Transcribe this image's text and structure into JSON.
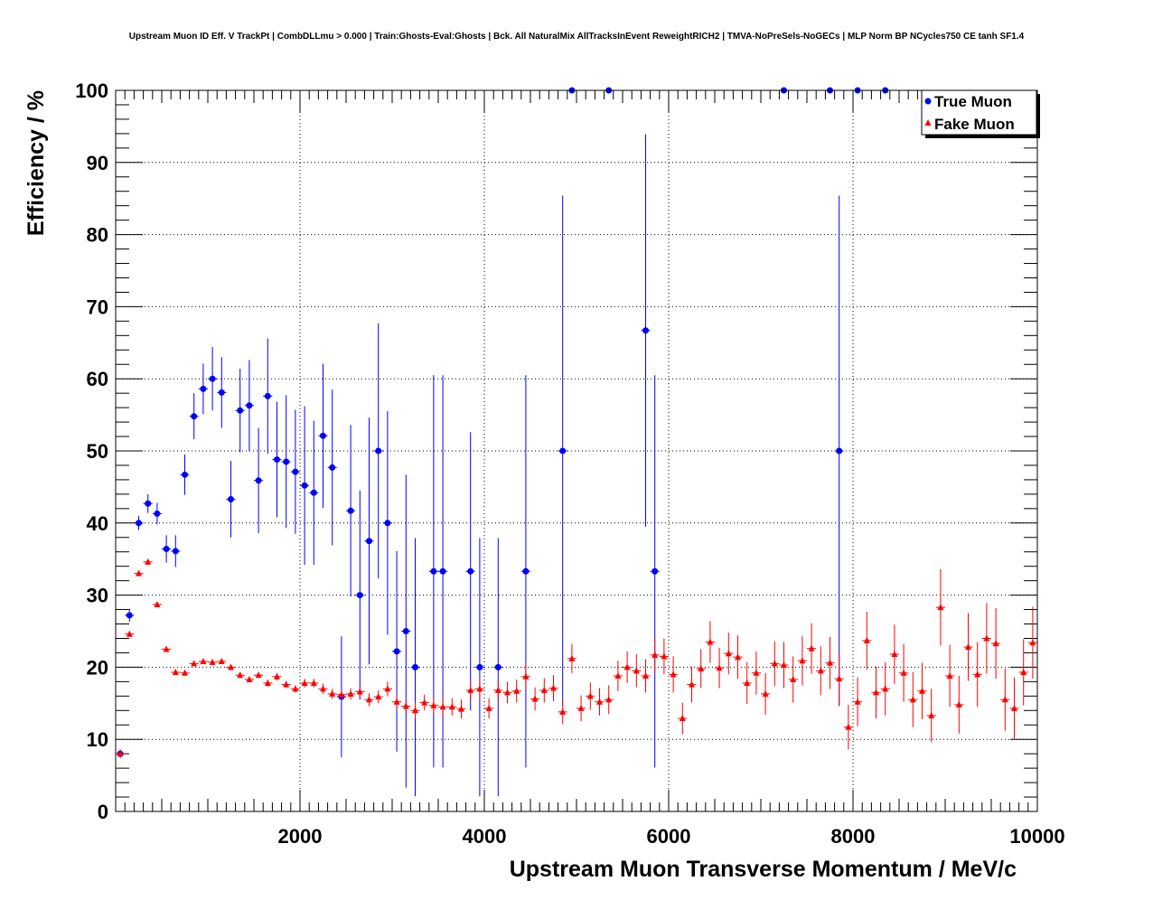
{
  "chart_data": {
    "type": "scatter",
    "title": "Upstream Muon ID Eff. V TrackPt | CombDLLmu > 0.000 | Train:Ghosts-Eval:Ghosts | Bck. All NaturalMix AllTracksInEvent ReweightRICH2 | TMVA-NoPreSels-NoGECs | MLP Norm BP NCycles750 CE tanh SF1.4",
    "xlabel": "Upstream Muon Transverse Momentum / MeV/c",
    "ylabel": "Efficiency / %",
    "xlim": [
      0,
      10000
    ],
    "ylim": [
      0,
      100
    ],
    "x_ticks": [
      2000,
      4000,
      6000,
      8000,
      10000
    ],
    "y_ticks": [
      0,
      10,
      20,
      30,
      40,
      50,
      60,
      70,
      80,
      90,
      100
    ],
    "grid": true,
    "legend_position": "top-right",
    "series": [
      {
        "name": "True Muon",
        "color": "#0000ff",
        "marker": "circle",
        "points": [
          {
            "x": 50,
            "y": 8,
            "err": 0.6
          },
          {
            "x": 150,
            "y": 27.2,
            "err": 0.9
          },
          {
            "x": 250,
            "y": 40,
            "err": 1
          },
          {
            "x": 350,
            "y": 42.7,
            "err": 1.3
          },
          {
            "x": 450,
            "y": 41.3,
            "err": 1.5
          },
          {
            "x": 550,
            "y": 36.4,
            "err": 1.9
          },
          {
            "x": 650,
            "y": 36.1,
            "err": 2.2
          },
          {
            "x": 750,
            "y": 46.7,
            "err": 2.8
          },
          {
            "x": 850,
            "y": 54.8,
            "err": 3.2
          },
          {
            "x": 950,
            "y": 58.6,
            "err": 3.5
          },
          {
            "x": 1050,
            "y": 60,
            "err": 4.4
          },
          {
            "x": 1150,
            "y": 58.1,
            "err": 4.9
          },
          {
            "x": 1250,
            "y": 43.3,
            "err": 5.3
          },
          {
            "x": 1350,
            "y": 55.6,
            "err": 5.8
          },
          {
            "x": 1450,
            "y": 56.3,
            "err": 6.3
          },
          {
            "x": 1550,
            "y": 45.9,
            "err": 7.3
          },
          {
            "x": 1650,
            "y": 57.6,
            "err": 8
          },
          {
            "x": 1750,
            "y": 48.8,
            "err": 8
          },
          {
            "x": 1850,
            "y": 48.5,
            "err": 9.2
          },
          {
            "x": 1950,
            "y": 47.1,
            "err": 8.6
          },
          {
            "x": 2050,
            "y": 45.2,
            "err": 11
          },
          {
            "x": 2150,
            "y": 44.2,
            "err": 10
          },
          {
            "x": 2250,
            "y": 52.1,
            "err": 10
          },
          {
            "x": 2350,
            "y": 47.7,
            "err": 10.8
          },
          {
            "x": 2450,
            "y": 15.9,
            "err": 8.4
          },
          {
            "x": 2550,
            "y": 41.7,
            "err": 11.9
          },
          {
            "x": 2650,
            "y": 30,
            "err": 14.5
          },
          {
            "x": 2750,
            "y": 37.5,
            "err": 17.1
          },
          {
            "x": 2850,
            "y": 50,
            "err": 17.7
          },
          {
            "x": 2950,
            "y": 40,
            "err": 15.5
          },
          {
            "x": 3050,
            "y": 22.2,
            "err": 13.9
          },
          {
            "x": 3150,
            "y": 25,
            "err": 21.7
          },
          {
            "x": 3250,
            "y": 20,
            "err": 17.9
          },
          {
            "x": 3450,
            "y": 33.3,
            "err": 27.2
          },
          {
            "x": 3550,
            "y": 33.3,
            "err": 27.2
          },
          {
            "x": 3850,
            "y": 33.3,
            "err": 19.3
          },
          {
            "x": 3950,
            "y": 20,
            "err": 17.9
          },
          {
            "x": 4150,
            "y": 20,
            "err": 17.9
          },
          {
            "x": 4450,
            "y": 33.3,
            "err": 27.2
          },
          {
            "x": 4850,
            "y": 50,
            "err": 35.4
          },
          {
            "x": 4950,
            "y": 100,
            "err": 0
          },
          {
            "x": 5350,
            "y": 100,
            "err": 0
          },
          {
            "x": 5750,
            "y": 66.7,
            "err": 27.2
          },
          {
            "x": 5850,
            "y": 33.3,
            "err": 27.2
          },
          {
            "x": 7250,
            "y": 100,
            "err": 0
          },
          {
            "x": 7750,
            "y": 100,
            "err": 0
          },
          {
            "x": 7850,
            "y": 50,
            "err": 35.4
          },
          {
            "x": 8050,
            "y": 100,
            "err": 0
          },
          {
            "x": 8350,
            "y": 100,
            "err": 0
          }
        ]
      },
      {
        "name": "Fake Muon",
        "color": "#ff0000",
        "marker": "triangle",
        "points": [
          {
            "x": 50,
            "y": 8,
            "err": 0.2
          },
          {
            "x": 150,
            "y": 24.6,
            "err": 0.3
          },
          {
            "x": 250,
            "y": 33,
            "err": 0.3
          },
          {
            "x": 350,
            "y": 34.6,
            "err": 0.3
          },
          {
            "x": 450,
            "y": 28.7,
            "err": 0.3
          },
          {
            "x": 550,
            "y": 22.5,
            "err": 0.3
          },
          {
            "x": 650,
            "y": 19.3,
            "err": 0.3
          },
          {
            "x": 750,
            "y": 19.2,
            "err": 0.3
          },
          {
            "x": 850,
            "y": 20.5,
            "err": 0.3
          },
          {
            "x": 950,
            "y": 20.8,
            "err": 0.3
          },
          {
            "x": 1050,
            "y": 20.7,
            "err": 0.3
          },
          {
            "x": 1150,
            "y": 20.8,
            "err": 0.4
          },
          {
            "x": 1250,
            "y": 20,
            "err": 0.4
          },
          {
            "x": 1350,
            "y": 18.9,
            "err": 0.4
          },
          {
            "x": 1450,
            "y": 18.3,
            "err": 0.4
          },
          {
            "x": 1550,
            "y": 18.9,
            "err": 0.4
          },
          {
            "x": 1650,
            "y": 17.8,
            "err": 0.5
          },
          {
            "x": 1750,
            "y": 18.7,
            "err": 0.5
          },
          {
            "x": 1850,
            "y": 17.6,
            "err": 0.5
          },
          {
            "x": 1950,
            "y": 17,
            "err": 0.5
          },
          {
            "x": 2050,
            "y": 17.8,
            "err": 0.6
          },
          {
            "x": 2150,
            "y": 17.8,
            "err": 0.6
          },
          {
            "x": 2250,
            "y": 17,
            "err": 0.7
          },
          {
            "x": 2350,
            "y": 16.3,
            "err": 0.7
          },
          {
            "x": 2450,
            "y": 16.2,
            "err": 0.7
          },
          {
            "x": 2550,
            "y": 16.3,
            "err": 0.8
          },
          {
            "x": 2650,
            "y": 16.6,
            "err": 0.8
          },
          {
            "x": 2750,
            "y": 15.5,
            "err": 0.9
          },
          {
            "x": 2850,
            "y": 15.9,
            "err": 0.9
          },
          {
            "x": 2950,
            "y": 17,
            "err": 1
          },
          {
            "x": 3050,
            "y": 15.2,
            "err": 1
          },
          {
            "x": 3150,
            "y": 14.6,
            "err": 1
          },
          {
            "x": 3250,
            "y": 14,
            "err": 1.1
          },
          {
            "x": 3350,
            "y": 15.1,
            "err": 1.1
          },
          {
            "x": 3450,
            "y": 14.7,
            "err": 1.2
          },
          {
            "x": 3550,
            "y": 14.5,
            "err": 1.2
          },
          {
            "x": 3650,
            "y": 14.5,
            "err": 1.2
          },
          {
            "x": 3750,
            "y": 14.2,
            "err": 1.3
          },
          {
            "x": 3850,
            "y": 16.8,
            "err": 1.4
          },
          {
            "x": 3950,
            "y": 17,
            "err": 1.5
          },
          {
            "x": 4050,
            "y": 14.3,
            "err": 1.4
          },
          {
            "x": 4150,
            "y": 16.8,
            "err": 1.5
          },
          {
            "x": 4250,
            "y": 16.5,
            "err": 1.5
          },
          {
            "x": 4350,
            "y": 16.7,
            "err": 1.6
          },
          {
            "x": 4450,
            "y": 18.7,
            "err": 1.7
          },
          {
            "x": 4550,
            "y": 15.6,
            "err": 1.6
          },
          {
            "x": 4650,
            "y": 16.8,
            "err": 1.7
          },
          {
            "x": 4750,
            "y": 17.1,
            "err": 1.8
          },
          {
            "x": 4850,
            "y": 13.8,
            "err": 1.7
          },
          {
            "x": 4950,
            "y": 21.2,
            "err": 2
          },
          {
            "x": 5050,
            "y": 14.3,
            "err": 1.8
          },
          {
            "x": 5150,
            "y": 16,
            "err": 1.9
          },
          {
            "x": 5250,
            "y": 15.2,
            "err": 1.9
          },
          {
            "x": 5350,
            "y": 15.5,
            "err": 2
          },
          {
            "x": 5450,
            "y": 18.8,
            "err": 2.1
          },
          {
            "x": 5550,
            "y": 20,
            "err": 2.2
          },
          {
            "x": 5650,
            "y": 19.5,
            "err": 2.3
          },
          {
            "x": 5750,
            "y": 18.8,
            "err": 2.3
          },
          {
            "x": 5850,
            "y": 21.7,
            "err": 2.4
          },
          {
            "x": 5950,
            "y": 21.5,
            "err": 2.5
          },
          {
            "x": 6050,
            "y": 19,
            "err": 2.5
          },
          {
            "x": 6150,
            "y": 12.9,
            "err": 2.2
          },
          {
            "x": 6250,
            "y": 17.6,
            "err": 2.5
          },
          {
            "x": 6350,
            "y": 19.8,
            "err": 2.7
          },
          {
            "x": 6450,
            "y": 23.5,
            "err": 2.9
          },
          {
            "x": 6550,
            "y": 19.9,
            "err": 2.8
          },
          {
            "x": 6650,
            "y": 21.9,
            "err": 2.9
          },
          {
            "x": 6750,
            "y": 21.4,
            "err": 3
          },
          {
            "x": 6850,
            "y": 17.8,
            "err": 2.9
          },
          {
            "x": 6950,
            "y": 19.2,
            "err": 3
          },
          {
            "x": 7050,
            "y": 16.3,
            "err": 2.9
          },
          {
            "x": 7150,
            "y": 20.5,
            "err": 3.1
          },
          {
            "x": 7250,
            "y": 20.3,
            "err": 3.2
          },
          {
            "x": 7350,
            "y": 18.3,
            "err": 3.2
          },
          {
            "x": 7450,
            "y": 20.9,
            "err": 3.4
          },
          {
            "x": 7550,
            "y": 22.6,
            "err": 3.5
          },
          {
            "x": 7650,
            "y": 19.5,
            "err": 3.4
          },
          {
            "x": 7750,
            "y": 20.6,
            "err": 3.6
          },
          {
            "x": 7850,
            "y": 18.4,
            "err": 3.5
          },
          {
            "x": 7950,
            "y": 11.7,
            "err": 3.1
          },
          {
            "x": 8050,
            "y": 15.2,
            "err": 3.4
          },
          {
            "x": 8150,
            "y": 23.7,
            "err": 4
          },
          {
            "x": 8250,
            "y": 16.5,
            "err": 3.6
          },
          {
            "x": 8350,
            "y": 17,
            "err": 3.7
          },
          {
            "x": 8450,
            "y": 21.8,
            "err": 4.1
          },
          {
            "x": 8550,
            "y": 19.2,
            "err": 4
          },
          {
            "x": 8650,
            "y": 15.5,
            "err": 3.8
          },
          {
            "x": 8750,
            "y": 16.7,
            "err": 3.9
          },
          {
            "x": 8850,
            "y": 13.3,
            "err": 3.7
          },
          {
            "x": 8950,
            "y": 28.3,
            "err": 5.3
          },
          {
            "x": 9050,
            "y": 18.8,
            "err": 4.3
          },
          {
            "x": 9150,
            "y": 14.8,
            "err": 4
          },
          {
            "x": 9250,
            "y": 22.8,
            "err": 4.7
          },
          {
            "x": 9350,
            "y": 19,
            "err": 4.5
          },
          {
            "x": 9450,
            "y": 24,
            "err": 4.9
          },
          {
            "x": 9550,
            "y": 23.3,
            "err": 4.9
          },
          {
            "x": 9650,
            "y": 15.5,
            "err": 4.3
          },
          {
            "x": 9750,
            "y": 14.3,
            "err": 4.3
          },
          {
            "x": 9850,
            "y": 19.3,
            "err": 4.6
          },
          {
            "x": 9950,
            "y": 23.4,
            "err": 5
          }
        ]
      }
    ]
  }
}
